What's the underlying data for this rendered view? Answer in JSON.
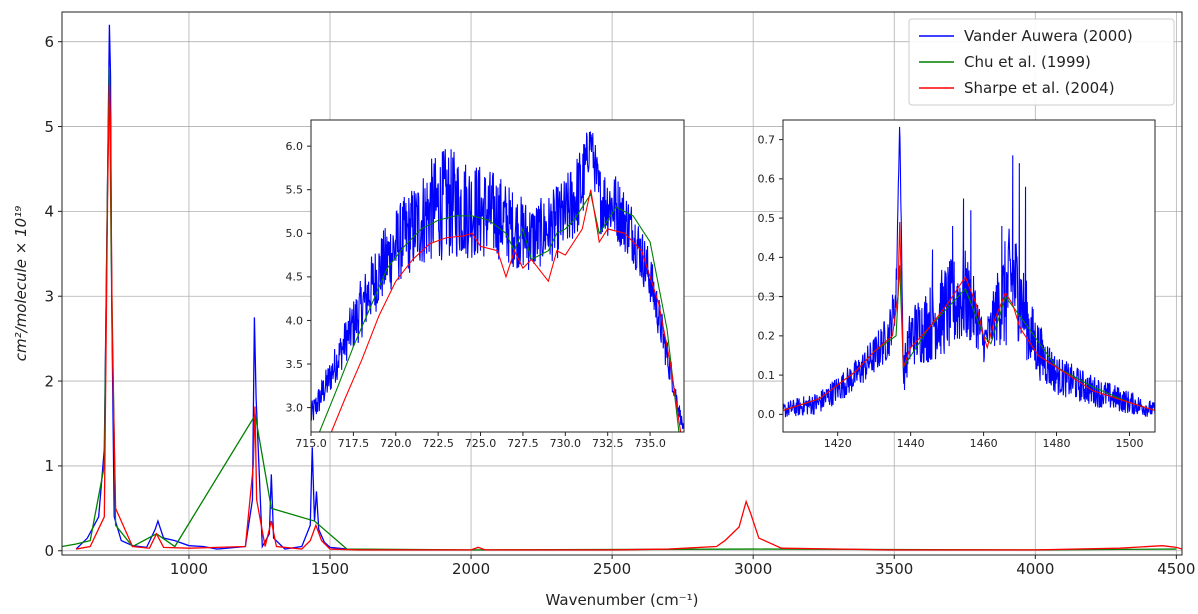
{
  "chart_data": [
    {
      "id": "main",
      "type": "line",
      "xlabel": "Wavenumber (cm⁻¹)",
      "ylabel": "cm²/molecule × 10¹⁹",
      "xlim": [
        550,
        4520
      ],
      "ylim": [
        -0.05,
        6.35
      ],
      "xticks": [
        1000,
        1500,
        2000,
        2500,
        3000,
        3500,
        4000,
        4500
      ],
      "yticks": [
        0,
        1,
        2,
        3,
        4,
        5,
        6
      ],
      "grid": true,
      "legend": {
        "placement": "top-right",
        "entries": [
          "Vander Auwera (2000)",
          "Chu et al. (1999)",
          "Sharpe et al. (2004)"
        ]
      },
      "series": [
        {
          "name": "Vander Auwera (2000)",
          "color": "#0000ff",
          "x": [
            600,
            640,
            680,
            700,
            712,
            718,
            722,
            726,
            735,
            760,
            800,
            850,
            880,
            890,
            910,
            950,
            1000,
            1050,
            1100,
            1200,
            1225,
            1232,
            1238,
            1260,
            1285,
            1292,
            1300,
            1340,
            1400,
            1430,
            1437,
            1445,
            1452,
            1460,
            1480,
            1500,
            1560
          ],
          "y": [
            0.02,
            0.15,
            0.4,
            1.2,
            4.5,
            6.2,
            5.6,
            3.0,
            0.4,
            0.12,
            0.06,
            0.04,
            0.25,
            0.35,
            0.15,
            0.12,
            0.06,
            0.05,
            0.02,
            0.05,
            0.6,
            2.75,
            1.8,
            0.05,
            0.2,
            0.9,
            0.15,
            0.02,
            0.05,
            0.3,
            1.22,
            0.35,
            0.7,
            0.25,
            0.1,
            0.04,
            0.02
          ]
        },
        {
          "name": "Chu et al. (1999)",
          "color": "#008000",
          "x": [
            550,
            600,
            650,
            700,
            712,
            718,
            724,
            740,
            800,
            885,
            950,
            1235,
            1292,
            1445,
            1560,
            2000,
            3000,
            4000,
            4500
          ],
          "y": [
            0.05,
            0.08,
            0.12,
            1.0,
            4.5,
            5.7,
            3.6,
            0.3,
            0.05,
            0.2,
            0.05,
            1.6,
            0.5,
            0.35,
            0.02,
            0.01,
            0.02,
            0.01,
            0.02
          ]
        },
        {
          "name": "Sharpe et al. (2004)",
          "color": "#ff0000",
          "x": [
            600,
            650,
            700,
            712,
            718,
            722,
            728,
            740,
            800,
            860,
            885,
            910,
            1000,
            1100,
            1200,
            1228,
            1234,
            1240,
            1270,
            1292,
            1310,
            1400,
            1430,
            1450,
            1470,
            1500,
            1600,
            2000,
            2025,
            2050,
            2500,
            2700,
            2870,
            2900,
            2950,
            2975,
            2990,
            3020,
            3100,
            3500,
            4000,
            4300,
            4450,
            4500,
            4520
          ],
          "y": [
            0.02,
            0.05,
            0.4,
            4.3,
            5.5,
            5.0,
            2.5,
            0.5,
            0.05,
            0.03,
            0.2,
            0.04,
            0.03,
            0.04,
            0.05,
            1.0,
            1.7,
            0.6,
            0.05,
            0.35,
            0.05,
            0.02,
            0.12,
            0.3,
            0.12,
            0.02,
            0.01,
            0.01,
            0.04,
            0.01,
            0.01,
            0.02,
            0.05,
            0.12,
            0.28,
            0.58,
            0.45,
            0.15,
            0.03,
            0.01,
            0.01,
            0.03,
            0.06,
            0.04,
            0.02
          ]
        }
      ]
    },
    {
      "id": "inset-left",
      "type": "line",
      "xlim": [
        715,
        737
      ],
      "ylim": [
        2.72,
        6.3
      ],
      "xticks": [
        715.0,
        717.5,
        720.0,
        722.5,
        725.0,
        727.5,
        730.0,
        732.5,
        735.0
      ],
      "xtick_labels": [
        "715.0",
        "717.5",
        "720.0",
        "722.5",
        "725.0",
        "727.5",
        "730.0",
        "732.5",
        "735.0"
      ],
      "yticks": [
        3.0,
        3.5,
        4.0,
        4.5,
        5.0,
        5.5,
        6.0
      ],
      "ytick_labels": [
        "3.0",
        "3.5",
        "4.0",
        "4.5",
        "5.0",
        "5.5",
        "6.0"
      ],
      "series": [
        {
          "name": "Vander Auwera (2000)",
          "color": "#0000ff",
          "x": [
            715,
            716,
            717,
            718,
            719,
            720,
            721,
            722,
            723,
            724,
            725,
            726,
            727,
            728,
            729,
            730,
            731,
            731.5,
            732,
            733,
            734,
            735,
            736,
            737
          ],
          "y": [
            2.9,
            3.3,
            3.75,
            4.15,
            4.55,
            4.85,
            5.05,
            5.25,
            5.35,
            5.3,
            5.25,
            5.2,
            5.05,
            4.95,
            5.05,
            5.2,
            5.55,
            6.1,
            5.4,
            5.3,
            5.0,
            4.5,
            3.6,
            2.72
          ],
          "amp": [
            0.15,
            0.2,
            0.25,
            0.35,
            0.4,
            0.45,
            0.5,
            0.6,
            0.65,
            0.6,
            0.55,
            0.5,
            0.45,
            0.4,
            0.4,
            0.45,
            0.5,
            0.2,
            0.4,
            0.4,
            0.35,
            0.3,
            0.2,
            0.05
          ]
        },
        {
          "name": "Chu et al. (1999)",
          "color": "#008000",
          "x": [
            715.5,
            716.5,
            717.5,
            718.5,
            719.5,
            720.5,
            721.5,
            722.5,
            723.5,
            724.5,
            725.5,
            726.5,
            727.0,
            727.5,
            728.0,
            729.0,
            729.5,
            730.0,
            730.5,
            731.0,
            731.5,
            732.0,
            733.0,
            734.0,
            735.0,
            736.0,
            736.7
          ],
          "y": [
            2.72,
            3.2,
            3.7,
            4.15,
            4.6,
            4.85,
            5.05,
            5.15,
            5.2,
            5.2,
            5.15,
            5.0,
            4.8,
            5.05,
            4.7,
            4.8,
            5.0,
            5.05,
            5.15,
            5.3,
            5.45,
            5.0,
            5.3,
            5.2,
            4.9,
            3.9,
            2.72
          ]
        },
        {
          "name": "Sharpe et al. (2004)",
          "color": "#ff0000",
          "x": [
            716.2,
            717.0,
            718.0,
            719.0,
            720.0,
            721.0,
            722.0,
            723.0,
            724.0,
            724.5,
            725.0,
            726.0,
            726.5,
            727.0,
            727.5,
            728.0,
            729.0,
            729.5,
            730.0,
            730.5,
            731.0,
            731.5,
            732.0,
            732.5,
            733.5,
            734.5,
            735.5,
            736.2,
            736.8
          ],
          "y": [
            2.72,
            3.1,
            3.55,
            4.05,
            4.45,
            4.7,
            4.88,
            4.95,
            4.97,
            5.0,
            4.85,
            4.8,
            4.5,
            4.8,
            4.6,
            4.7,
            4.45,
            4.8,
            4.75,
            4.9,
            5.05,
            5.5,
            4.9,
            5.05,
            5.0,
            4.8,
            4.2,
            3.5,
            2.72
          ]
        }
      ]
    },
    {
      "id": "inset-right",
      "type": "line",
      "xlim": [
        1405,
        1507
      ],
      "ylim": [
        -0.045,
        0.75
      ],
      "xticks": [
        1420,
        1440,
        1460,
        1480,
        1500
      ],
      "xtick_labels": [
        "1420",
        "1440",
        "1460",
        "1480",
        "1500"
      ],
      "yticks": [
        0.0,
        0.1,
        0.2,
        0.3,
        0.4,
        0.5,
        0.6,
        0.7
      ],
      "ytick_labels": [
        "0.0",
        "0.1",
        "0.2",
        "0.3",
        "0.4",
        "0.5",
        "0.6",
        "0.7"
      ],
      "series": [
        {
          "name": "Vander Auwera (2000)",
          "color": "#0000ff",
          "x": [
            1405,
            1415,
            1425,
            1430,
            1434,
            1436,
            1437,
            1438,
            1440,
            1445,
            1450,
            1455,
            1458,
            1460,
            1462,
            1464,
            1466,
            1468,
            1470,
            1473,
            1476,
            1480,
            1490,
            1500,
            1507
          ],
          "y": [
            0.01,
            0.03,
            0.1,
            0.15,
            0.2,
            0.3,
            0.75,
            0.1,
            0.2,
            0.23,
            0.27,
            0.3,
            0.25,
            0.18,
            0.22,
            0.28,
            0.3,
            0.35,
            0.3,
            0.2,
            0.15,
            0.1,
            0.06,
            0.03,
            0.01
          ],
          "amp": [
            0.02,
            0.03,
            0.04,
            0.05,
            0.06,
            0.06,
            0.0,
            0.05,
            0.08,
            0.1,
            0.12,
            0.12,
            0.08,
            0.05,
            0.06,
            0.1,
            0.15,
            0.15,
            0.12,
            0.09,
            0.07,
            0.05,
            0.04,
            0.03,
            0.02
          ],
          "peaks": [
            [
              1451.5,
              0.48
            ],
            [
              1454.5,
              0.55
            ],
            [
              1456.5,
              0.52
            ],
            [
              1468,
              0.66
            ],
            [
              1469.8,
              0.64
            ],
            [
              1471.5,
              0.58
            ],
            [
              1465,
              0.48
            ],
            [
              1446,
              0.42
            ]
          ]
        },
        {
          "name": "Chu et al. (1999)",
          "color": "#008000",
          "x": [
            1405,
            1415,
            1425,
            1430,
            1436,
            1437,
            1438,
            1445,
            1455,
            1460,
            1462,
            1466,
            1470,
            1480,
            1490,
            1500,
            1507
          ],
          "y": [
            0.01,
            0.04,
            0.11,
            0.16,
            0.2,
            0.38,
            0.12,
            0.22,
            0.32,
            0.2,
            0.18,
            0.3,
            0.25,
            0.12,
            0.07,
            0.03,
            0.01
          ]
        },
        {
          "name": "Sharpe et al. (2004)",
          "color": "#ff0000",
          "x": [
            1405,
            1415,
            1425,
            1430,
            1435,
            1436.5,
            1437,
            1438,
            1440,
            1445,
            1450,
            1455,
            1458,
            1460,
            1461,
            1463,
            1466,
            1468,
            1470,
            1475,
            1480,
            1490,
            1500,
            1507
          ],
          "y": [
            0.01,
            0.04,
            0.11,
            0.16,
            0.2,
            0.3,
            0.49,
            0.12,
            0.17,
            0.22,
            0.28,
            0.35,
            0.28,
            0.2,
            0.17,
            0.24,
            0.31,
            0.28,
            0.22,
            0.15,
            0.12,
            0.06,
            0.03,
            0.01
          ]
        }
      ]
    }
  ]
}
